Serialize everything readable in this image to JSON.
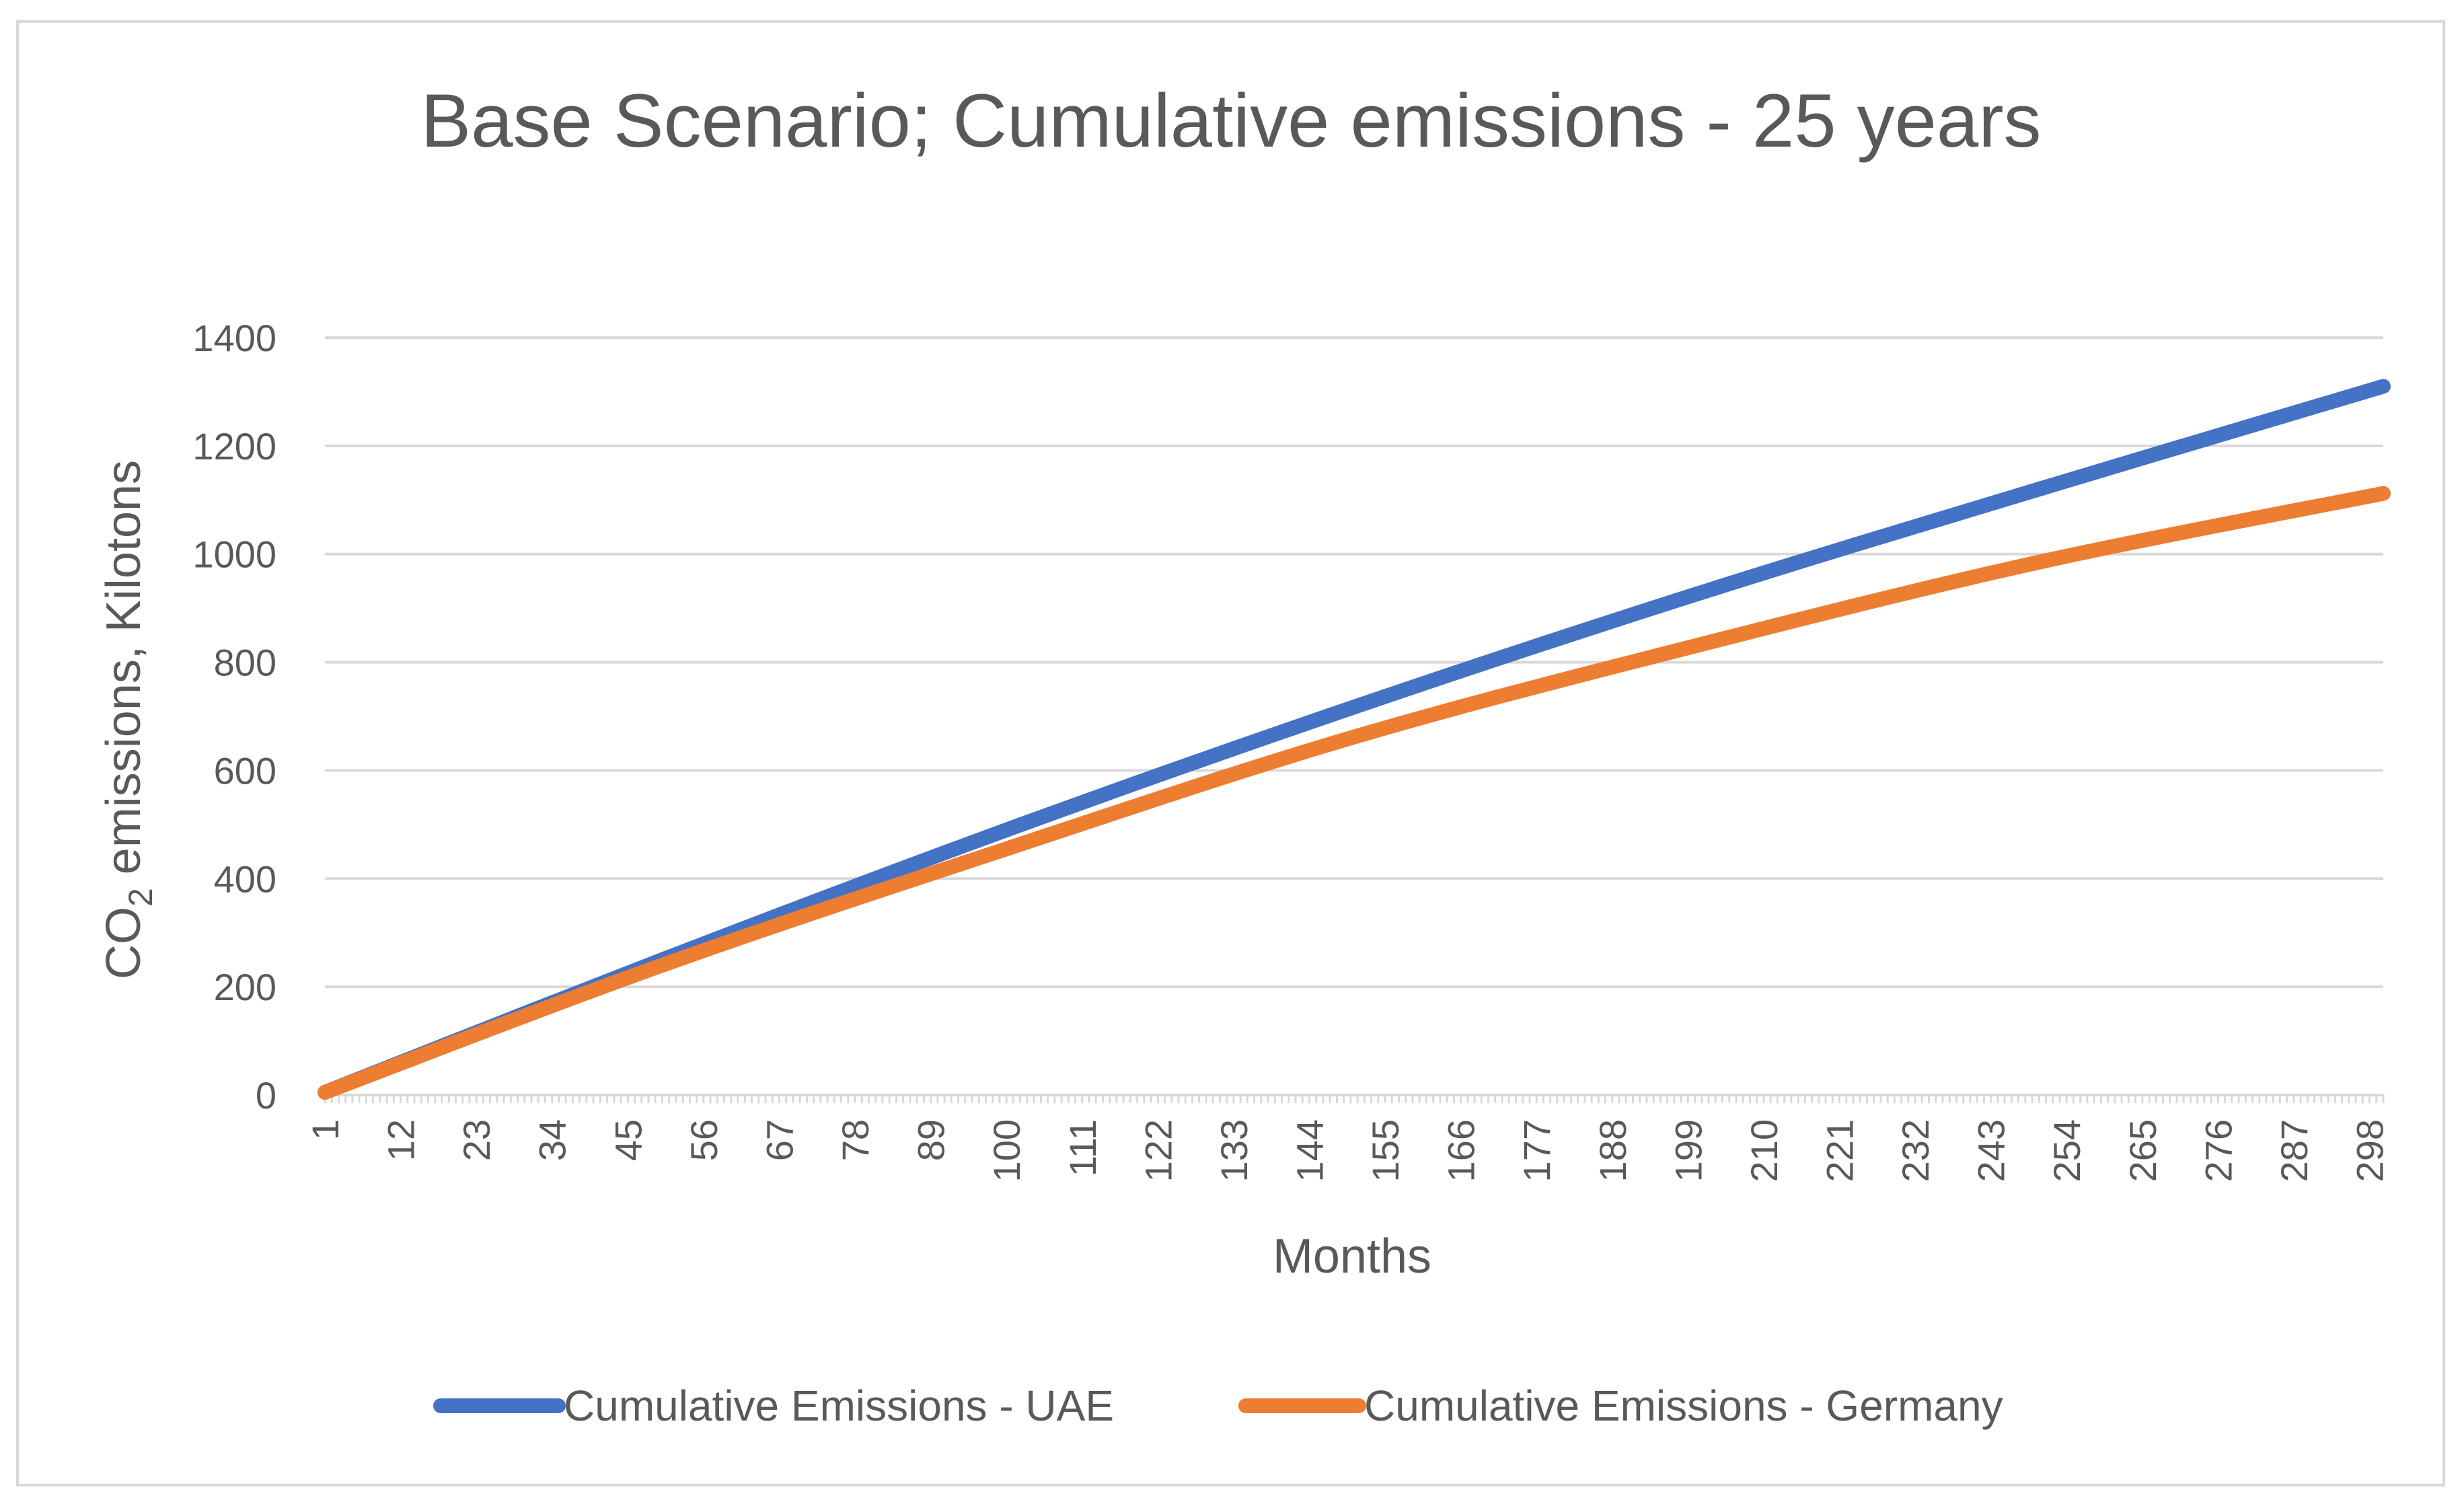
{
  "chart_data": {
    "type": "line",
    "title": "Base Scenario; Cumulative emissions - 25 years",
    "xlabel": "Months",
    "ylabel_main": "CO",
    "ylabel_sub": "2",
    "ylabel_rest": " emissions, Kilotons",
    "ylim": [
      0,
      1400
    ],
    "yticks": [
      0,
      200,
      400,
      600,
      800,
      1000,
      1200,
      1400
    ],
    "x_range": [
      1,
      300
    ],
    "xticks": [
      1,
      12,
      23,
      34,
      45,
      56,
      67,
      78,
      89,
      100,
      111,
      122,
      133,
      144,
      155,
      166,
      177,
      188,
      199,
      210,
      221,
      232,
      243,
      254,
      265,
      276,
      287,
      298
    ],
    "grid": true,
    "legend_position": "bottom",
    "series": [
      {
        "name": "Cumulative Emissions - UAE",
        "color": "#4472c4",
        "x": [
          1,
          50,
          100,
          150,
          200,
          250,
          300
        ],
        "values": [
          5,
          250,
          490,
          715,
          925,
          1120,
          1310
        ]
      },
      {
        "name": "Cumulative Emissions - Germany",
        "color": "#ed7d31",
        "x": [
          1,
          50,
          100,
          150,
          200,
          250,
          300
        ],
        "values": [
          5,
          240,
          455,
          660,
          830,
          985,
          1112
        ]
      }
    ]
  }
}
